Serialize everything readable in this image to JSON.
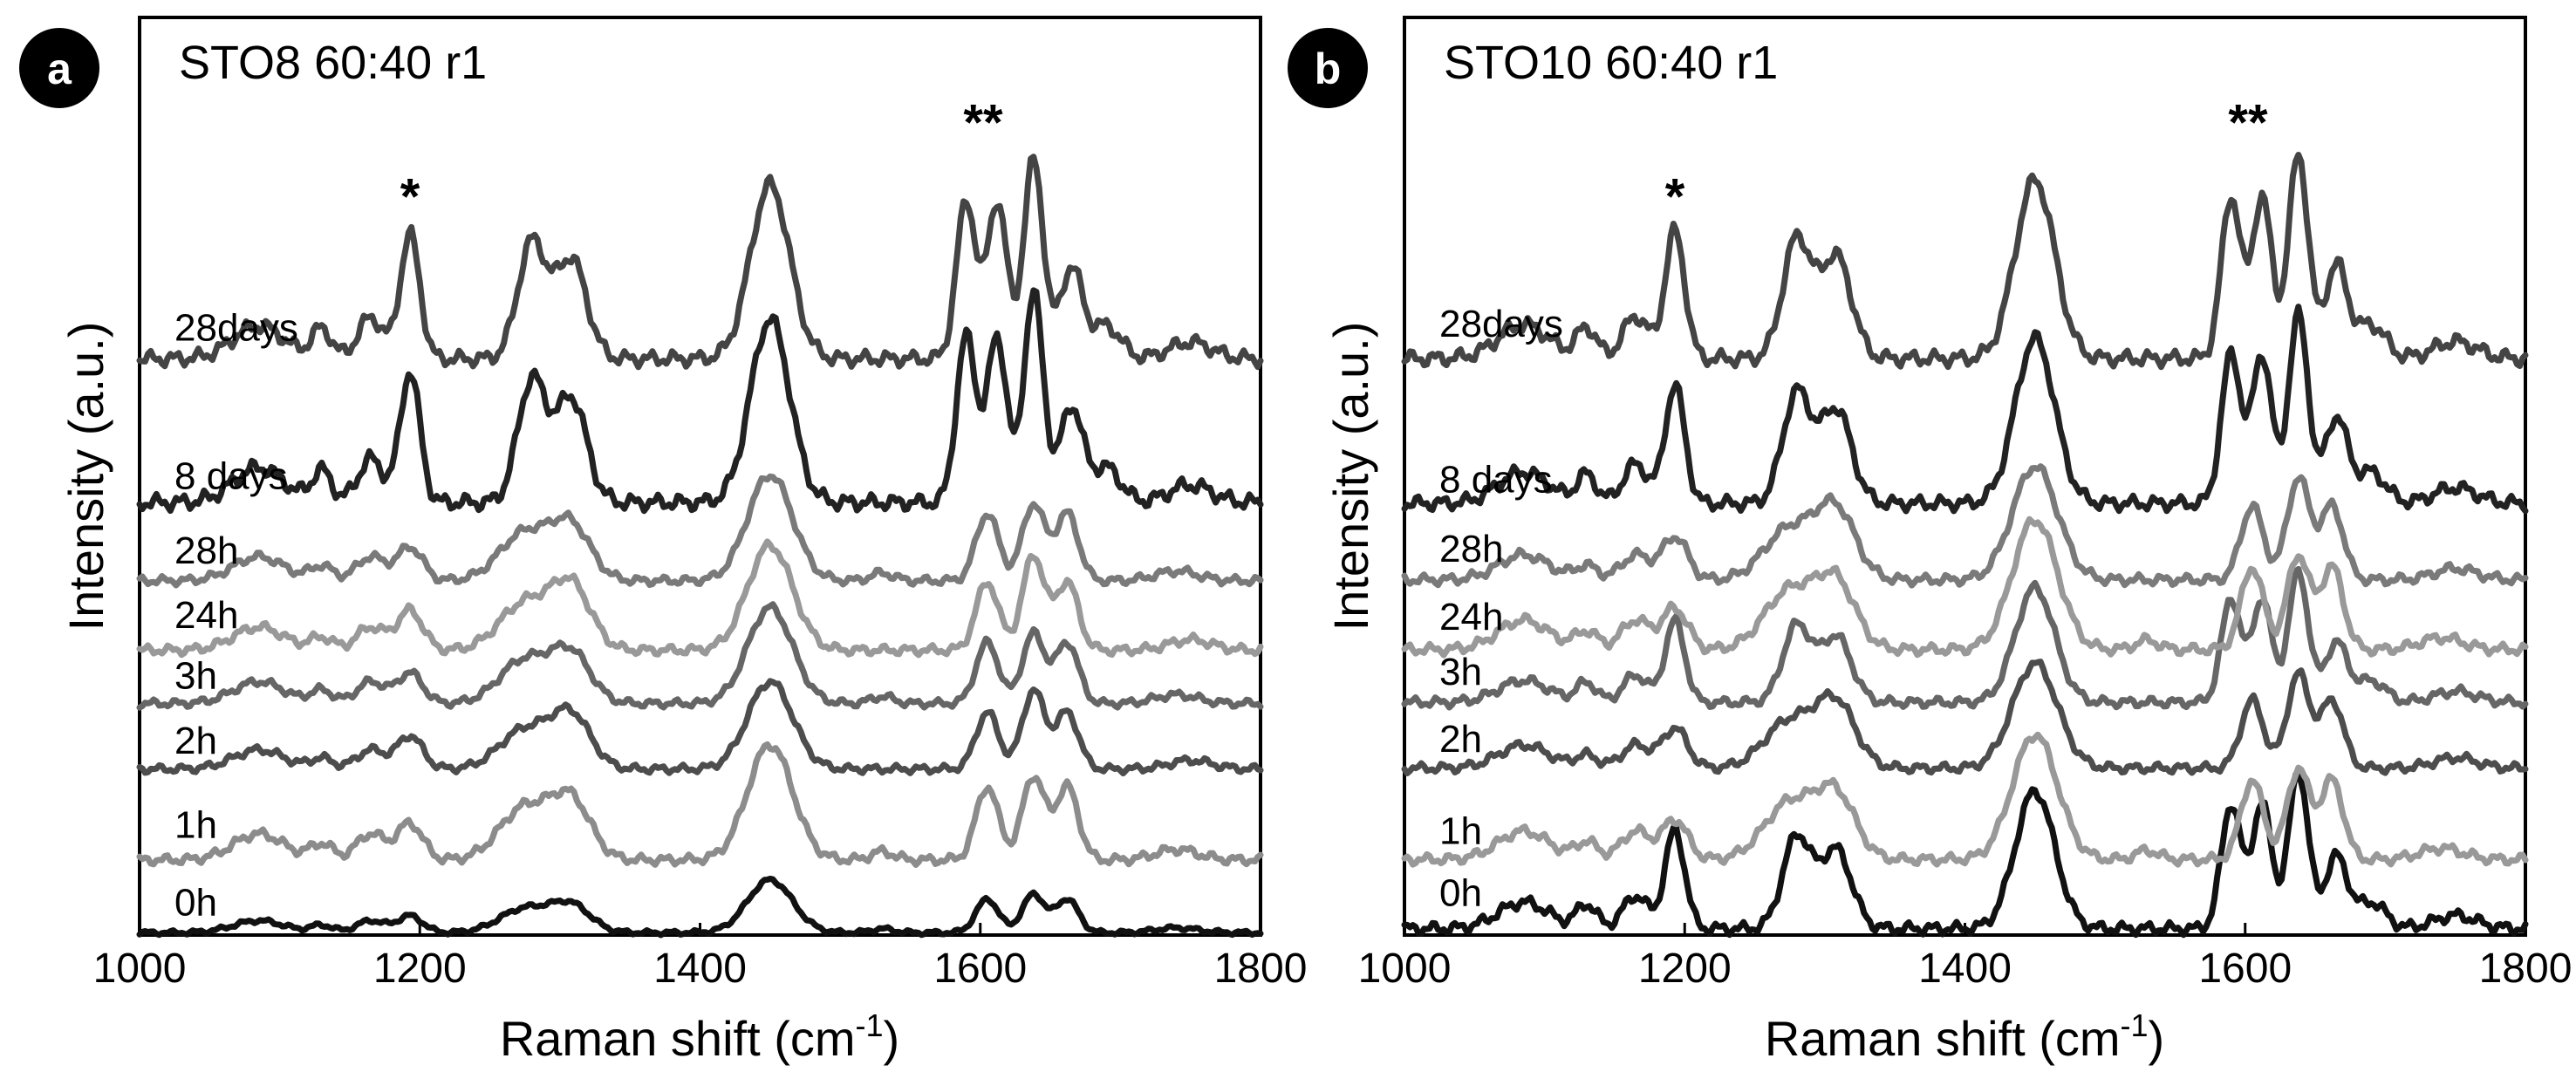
{
  "chart_data": [
    {
      "type": "line",
      "panel_letter": "a",
      "title": "STO8 60:40 r1",
      "xlabel": "Raman shift (cm",
      "xlabel_sup": "-1",
      "xlabel_end": ")",
      "ylabel": "Intensity (a.u.)",
      "xlim": [
        1000,
        1800
      ],
      "ylim": [
        0,
        10.5
      ],
      "xticks": [
        "1000",
        "1200",
        "1400",
        "1600",
        "1800"
      ],
      "series": [
        {
          "name": "0h",
          "color": "#111111",
          "offset": 0.0,
          "scale": 0.55,
          "variant": 0
        },
        {
          "name": "1h",
          "color": "#8c8c8c",
          "offset": 0.8,
          "scale": 1.2,
          "variant": 0
        },
        {
          "name": "2h",
          "color": "#4d4d4d",
          "offset": 1.85,
          "scale": 1.0,
          "variant": 1
        },
        {
          "name": "3h",
          "color": "#666666",
          "offset": 2.6,
          "scale": 1.0,
          "variant": 0
        },
        {
          "name": "24h",
          "color": "#999999",
          "offset": 3.2,
          "scale": 1.2,
          "variant": 1
        },
        {
          "name": "28h",
          "color": "#7a7a7a",
          "offset": 4.0,
          "scale": 1.1,
          "variant": 0
        },
        {
          "name": "8 days",
          "color": "#222222",
          "offset": 4.85,
          "scale": 2.0,
          "variant": 2
        },
        {
          "name": "28days",
          "color": "#444444",
          "offset": 6.5,
          "scale": 1.9,
          "variant": 2
        }
      ],
      "annotations": [
        {
          "text": "*",
          "x": 1193,
          "y": 8.25
        },
        {
          "text": "**",
          "x": 1602,
          "y": 9.1
        }
      ]
    },
    {
      "type": "line",
      "panel_letter": "b",
      "title": "STO10 60:40 r1",
      "xlabel": "Raman shift (cm",
      "xlabel_sup": "-1",
      "xlabel_end": ")",
      "ylabel": "Intensity (a.u.)",
      "xlim": [
        1000,
        1800
      ],
      "ylim": [
        0,
        10.5
      ],
      "xticks": [
        "1000",
        "1200",
        "1400",
        "1600",
        "1800"
      ],
      "series": [
        {
          "name": "0h",
          "color": "#111111",
          "offset": 0.0,
          "scale": 1.5,
          "variant": 2
        },
        {
          "name": "1h",
          "color": "#999999",
          "offset": 0.8,
          "scale": 1.3,
          "variant": 0
        },
        {
          "name": "2h",
          "color": "#4d4d4d",
          "offset": 1.85,
          "scale": 1.2,
          "variant": 1
        },
        {
          "name": "3h",
          "color": "#666666",
          "offset": 2.6,
          "scale": 1.25,
          "variant": 2
        },
        {
          "name": "24h",
          "color": "#999999",
          "offset": 3.2,
          "scale": 1.35,
          "variant": 0
        },
        {
          "name": "28h",
          "color": "#7a7a7a",
          "offset": 4.0,
          "scale": 1.3,
          "variant": 1
        },
        {
          "name": "8 days",
          "color": "#222222",
          "offset": 4.85,
          "scale": 1.8,
          "variant": 2
        },
        {
          "name": "28days",
          "color": "#444444",
          "offset": 6.5,
          "scale": 1.95,
          "variant": 2
        }
      ],
      "annotations": [
        {
          "text": "*",
          "x": 1193,
          "y": 8.25
        },
        {
          "text": "**",
          "x": 1602,
          "y": 9.1
        }
      ]
    }
  ]
}
